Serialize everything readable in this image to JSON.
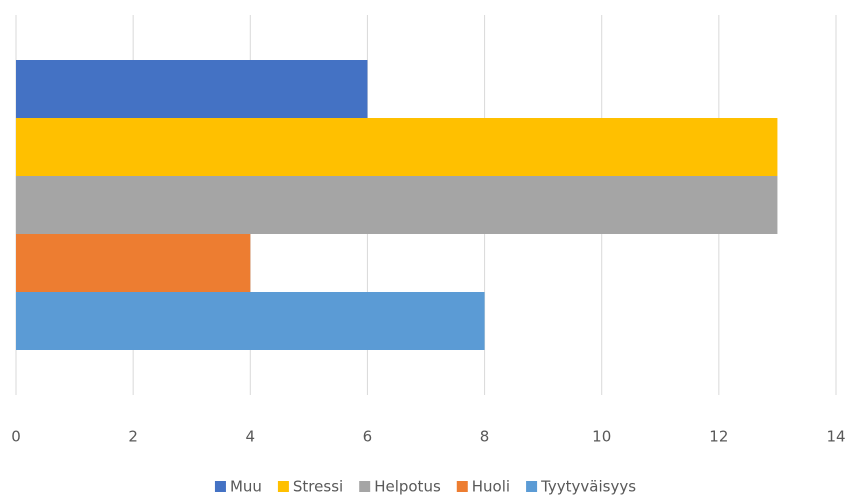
{
  "chart_data": {
    "type": "bar",
    "orientation": "horizontal",
    "categories": [
      null
    ],
    "series": [
      {
        "name": "Muu",
        "color": "#4472c4",
        "values": [
          6
        ]
      },
      {
        "name": "Stressi",
        "color": "#ffc000",
        "values": [
          13
        ]
      },
      {
        "name": "Helpotus",
        "color": "#a5a5a5",
        "values": [
          13
        ]
      },
      {
        "name": "Huoli",
        "color": "#ed7d31",
        "values": [
          4
        ]
      },
      {
        "name": "Tyytyväisyys",
        "color": "#5b9bd5",
        "values": [
          8
        ]
      }
    ],
    "xlim": [
      0,
      14
    ],
    "xticks": [
      0,
      2,
      4,
      6,
      8,
      10,
      12,
      14
    ],
    "grid": true,
    "legend": "bottom"
  }
}
